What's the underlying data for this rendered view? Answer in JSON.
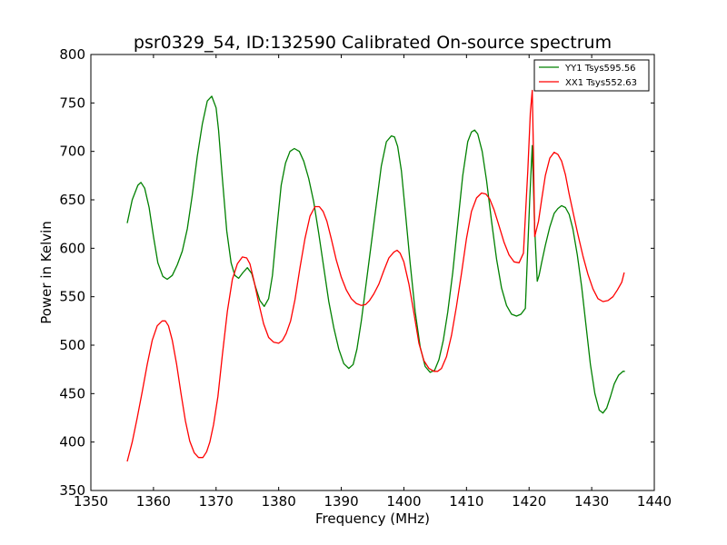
{
  "chart_data": {
    "type": "line",
    "title": "psr0329_54, ID:132590 Calibrated On-source spectrum",
    "xlabel": "Frequency (MHz)",
    "ylabel": "Power in Kelvin",
    "xlim": [
      1350,
      1440
    ],
    "ylim": [
      350,
      800
    ],
    "x_ticks": [
      1350,
      1360,
      1370,
      1380,
      1390,
      1400,
      1410,
      1420,
      1430,
      1440
    ],
    "y_ticks": [
      350,
      400,
      450,
      500,
      550,
      600,
      650,
      700,
      750,
      800
    ],
    "grid": false,
    "legend_position": "top-right",
    "series": [
      {
        "name": "YY1 Tsys595.56",
        "color": "#008000",
        "x": [
          1355.8,
          1356.6,
          1357.5,
          1358.0,
          1358.6,
          1359.3,
          1360.0,
          1360.7,
          1361.5,
          1362.2,
          1363.0,
          1363.8,
          1364.6,
          1365.4,
          1366.2,
          1367.0,
          1367.8,
          1368.6,
          1369.3,
          1370.0,
          1370.4,
          1371.0,
          1371.7,
          1372.4,
          1373.0,
          1373.6,
          1374.3,
          1375.0,
          1375.7,
          1376.3,
          1377.0,
          1377.7,
          1378.4,
          1379.0,
          1379.7,
          1380.4,
          1381.1,
          1381.8,
          1382.5,
          1383.3,
          1384.0,
          1384.8,
          1385.6,
          1386.4,
          1387.2,
          1388.0,
          1388.8,
          1389.6,
          1390.4,
          1391.2,
          1391.9,
          1392.5,
          1393.2,
          1394.0,
          1394.8,
          1395.6,
          1396.4,
          1397.2,
          1398.0,
          1398.5,
          1399.0,
          1399.6,
          1400.2,
          1401.0,
          1401.8,
          1402.6,
          1403.4,
          1404.2,
          1404.9,
          1405.6,
          1406.3,
          1407.0,
          1407.8,
          1408.6,
          1409.4,
          1410.2,
          1410.8,
          1411.3,
          1411.8,
          1412.5,
          1413.2,
          1414.0,
          1414.8,
          1415.6,
          1416.4,
          1417.2,
          1418.0,
          1418.7,
          1419.4,
          1420.1,
          1420.5,
          1420.9,
          1421.3,
          1421.6,
          1422.0,
          1422.6,
          1423.3,
          1424.0,
          1424.6,
          1425.2,
          1425.8,
          1426.4,
          1427.0,
          1427.7,
          1428.4,
          1429.1,
          1429.8,
          1430.5,
          1431.2,
          1431.8,
          1432.4,
          1433.0,
          1433.6,
          1434.3,
          1435.0,
          1435.3
        ],
        "y": [
          626,
          650,
          665,
          668,
          662,
          642,
          612,
          585,
          571,
          568,
          572,
          583,
          597,
          620,
          655,
          695,
          728,
          752,
          757,
          745,
          722,
          672,
          618,
          585,
          572,
          569,
          575,
          580,
          574,
          560,
          546,
          540,
          548,
          572,
          620,
          665,
          688,
          700,
          703,
          700,
          690,
          672,
          648,
          615,
          580,
          545,
          518,
          496,
          481,
          476,
          480,
          496,
          525,
          565,
          605,
          645,
          685,
          710,
          716,
          715,
          705,
          680,
          640,
          585,
          535,
          498,
          478,
          472,
          474,
          485,
          505,
          534,
          575,
          625,
          675,
          710,
          720,
          722,
          718,
          700,
          670,
          628,
          589,
          559,
          541,
          532,
          530,
          532,
          538,
          650,
          706,
          620,
          566,
          572,
          585,
          603,
          622,
          636,
          641,
          644,
          642,
          635,
          620,
          593,
          560,
          520,
          480,
          450,
          433,
          430,
          435,
          447,
          460,
          469,
          473,
          473
        ]
      },
      {
        "name": "XX1 Tsys552.63",
        "color": "#ff0000",
        "x": [
          1355.8,
          1356.6,
          1357.4,
          1358.2,
          1359.0,
          1359.8,
          1360.6,
          1361.4,
          1361.9,
          1362.4,
          1363.0,
          1363.7,
          1364.4,
          1365.1,
          1365.8,
          1366.5,
          1367.2,
          1367.9,
          1368.5,
          1369.0,
          1369.6,
          1370.3,
          1371.0,
          1371.8,
          1372.6,
          1373.4,
          1374.2,
          1374.9,
          1375.4,
          1376.0,
          1376.8,
          1377.6,
          1378.4,
          1379.2,
          1380.0,
          1380.6,
          1381.2,
          1381.9,
          1382.6,
          1383.4,
          1384.2,
          1385.0,
          1385.8,
          1386.5,
          1387.1,
          1387.7,
          1388.4,
          1389.2,
          1390.0,
          1390.8,
          1391.6,
          1392.4,
          1393.2,
          1393.9,
          1394.5,
          1395.2,
          1396.0,
          1396.8,
          1397.6,
          1398.4,
          1398.9,
          1399.4,
          1400.0,
          1400.8,
          1401.6,
          1402.4,
          1403.2,
          1404.0,
          1404.8,
          1405.4,
          1406.0,
          1406.8,
          1407.6,
          1408.4,
          1409.2,
          1410.0,
          1410.8,
          1411.6,
          1412.4,
          1413.1,
          1413.7,
          1414.4,
          1415.2,
          1416.0,
          1416.8,
          1417.6,
          1418.4,
          1419.1,
          1419.8,
          1420.2,
          1420.5,
          1420.7,
          1420.9,
          1421.2,
          1421.5,
          1422.0,
          1422.6,
          1423.3,
          1424.0,
          1424.6,
          1425.2,
          1425.8,
          1426.4,
          1427.1,
          1427.8,
          1428.6,
          1429.4,
          1430.2,
          1431.0,
          1431.8,
          1432.6,
          1433.4,
          1434.1,
          1434.8,
          1435.2
        ],
        "y": [
          380,
          400,
          425,
          452,
          480,
          505,
          520,
          525,
          525,
          520,
          505,
          480,
          450,
          422,
          401,
          389,
          384,
          384,
          390,
          400,
          418,
          447,
          490,
          535,
          568,
          584,
          591,
          590,
          584,
          568,
          544,
          522,
          508,
          503,
          502,
          505,
          512,
          525,
          547,
          580,
          610,
          633,
          643,
          643,
          638,
          628,
          610,
          588,
          570,
          557,
          548,
          543,
          541,
          542,
          546,
          553,
          563,
          577,
          590,
          596,
          598,
          595,
          586,
          563,
          533,
          502,
          484,
          476,
          473,
          473,
          476,
          488,
          510,
          540,
          574,
          610,
          638,
          652,
          657,
          656,
          651,
          640,
          623,
          606,
          593,
          586,
          585,
          595,
          680,
          740,
          763,
          700,
          612,
          620,
          628,
          650,
          675,
          693,
          699,
          697,
          690,
          676,
          656,
          635,
          614,
          592,
          573,
          558,
          548,
          545,
          546,
          550,
          557,
          565,
          575
        ]
      }
    ]
  }
}
